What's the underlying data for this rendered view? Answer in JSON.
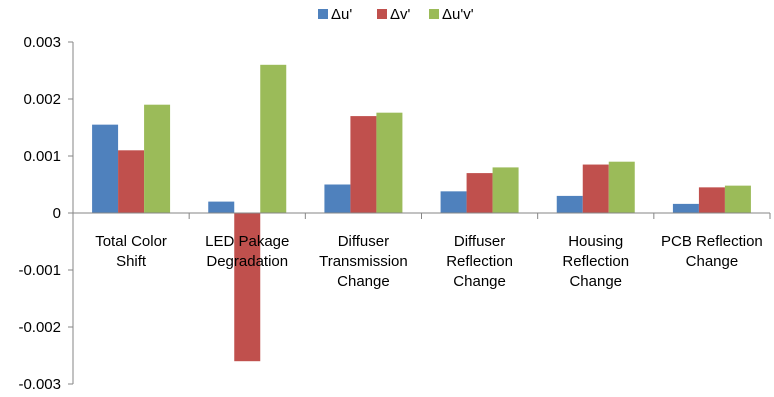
{
  "chart_data": {
    "type": "bar",
    "categories": [
      [
        "Total Color",
        "Shift"
      ],
      [
        "LED Pakage",
        "Degradation"
      ],
      [
        "Diffuser",
        "Transmission",
        "Change"
      ],
      [
        "Diffuser",
        "Reflection",
        "Change"
      ],
      [
        "Housing",
        "Reflection",
        "Change"
      ],
      [
        "PCB Reflection",
        "Change"
      ]
    ],
    "series": [
      {
        "name": "Δu'",
        "color": "#4f81bd",
        "values": [
          0.00155,
          0.0002,
          0.0005,
          0.00038,
          0.0003,
          0.00016
        ]
      },
      {
        "name": "Δv'",
        "color": "#c0504d",
        "values": [
          0.0011,
          -0.0026,
          0.0017,
          0.0007,
          0.00085,
          0.00045
        ]
      },
      {
        "name": "Δu'v'",
        "color": "#9bbb59",
        "values": [
          0.0019,
          0.0026,
          0.00176,
          0.0008,
          0.0009,
          0.00048
        ]
      }
    ],
    "y_ticks": [
      "0.003",
      "0.002",
      "0.001",
      "0",
      "-0.001",
      "-0.002",
      "-0.003"
    ],
    "y_tick_values": [
      0.003,
      0.002,
      0.001,
      0,
      -0.001,
      -0.002,
      -0.003
    ],
    "ylim": [
      -0.003,
      0.003
    ],
    "legend_position": "top",
    "grid": false
  }
}
